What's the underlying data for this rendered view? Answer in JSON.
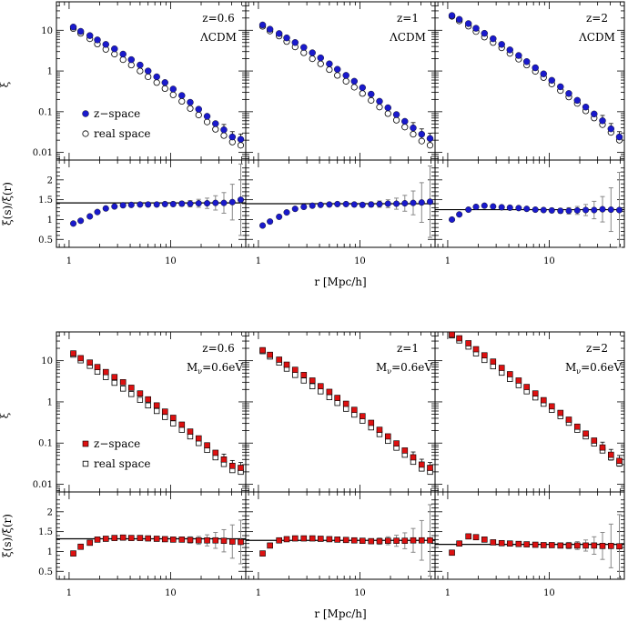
{
  "colors": {
    "lcdm_marker": "#1a1acc",
    "nu_marker": "#dd1111",
    "axis": "#000000",
    "errorbar": "#888888",
    "open_marker": "#000000"
  },
  "chart_data": [
    {
      "type": "scatter",
      "group": "top",
      "model": "LCDM",
      "ylabel_main": "ξ",
      "ylabel_ratio": "ξ(s)/ξ(r)",
      "xlabel": "r [Mpc/h]",
      "xscale": "log",
      "xlim": [
        0.75,
        55
      ],
      "main_yscale": "log",
      "main_ylim": [
        0.0065,
        50
      ],
      "main_yticks": [
        {
          "v": 0.01,
          "label": "0.01"
        },
        {
          "v": 0.1,
          "label": "0.1"
        },
        {
          "v": 1,
          "label": "1"
        },
        {
          "v": 10,
          "label": "10"
        }
      ],
      "ratio_ylim": [
        0.3,
        2.5
      ],
      "ratio_yticks": [
        {
          "v": 0.5,
          "label": "0.5"
        },
        {
          "v": 1,
          "label": "1"
        },
        {
          "v": 1.5,
          "label": "1.5"
        },
        {
          "v": 2,
          "label": "2"
        }
      ],
      "xticks": [
        {
          "v": 1,
          "label": "1"
        },
        {
          "v": 10,
          "label": "10"
        }
      ],
      "legend": [
        "z−space",
        "real space"
      ],
      "panels": [
        {
          "label_line1": "z=0.6",
          "label_line2": "ΛCDM",
          "r": [
            1.1,
            1.3,
            1.6,
            1.9,
            2.3,
            2.8,
            3.4,
            4.1,
            5.0,
            6.0,
            7.3,
            8.8,
            10.6,
            12.9,
            15.6,
            18.9,
            22.9,
            27.7,
            33.5,
            40.6,
            49.1
          ],
          "xi_s": [
            12.0,
            9.4,
            7.4,
            5.8,
            4.5,
            3.5,
            2.6,
            1.9,
            1.4,
            1.0,
            0.72,
            0.52,
            0.36,
            0.25,
            0.17,
            0.115,
            0.077,
            0.051,
            0.036,
            0.024,
            0.021
          ],
          "xi_r": [
            11.0,
            8.4,
            6.2,
            4.6,
            3.4,
            2.6,
            1.9,
            1.4,
            1.0,
            0.72,
            0.52,
            0.37,
            0.26,
            0.18,
            0.12,
            0.083,
            0.056,
            0.037,
            0.026,
            0.018,
            0.015
          ],
          "ratio": [
            0.9,
            0.97,
            1.08,
            1.19,
            1.28,
            1.33,
            1.36,
            1.37,
            1.38,
            1.38,
            1.38,
            1.39,
            1.39,
            1.4,
            1.4,
            1.41,
            1.41,
            1.42,
            1.42,
            1.44,
            1.5
          ],
          "ratio_err": [
            0.02,
            0.02,
            0.02,
            0.02,
            0.02,
            0.02,
            0.02,
            0.02,
            0.02,
            0.03,
            0.03,
            0.04,
            0.05,
            0.06,
            0.08,
            0.1,
            0.13,
            0.18,
            0.26,
            0.45,
            0.9
          ],
          "hline": 1.42
        },
        {
          "label_line1": "z=1",
          "label_line2": "ΛCDM",
          "r": [
            1.1,
            1.3,
            1.6,
            1.9,
            2.3,
            2.8,
            3.4,
            4.1,
            5.0,
            6.0,
            7.3,
            8.8,
            10.6,
            12.9,
            15.6,
            18.9,
            22.9,
            27.7,
            33.5,
            40.6,
            49.1
          ],
          "xi_s": [
            13.5,
            10.6,
            8.3,
            6.5,
            5.0,
            3.8,
            2.8,
            2.1,
            1.5,
            1.1,
            0.78,
            0.56,
            0.39,
            0.27,
            0.18,
            0.125,
            0.085,
            0.058,
            0.04,
            0.028,
            0.022
          ],
          "xi_r": [
            12.5,
            9.6,
            7.2,
            5.3,
            3.9,
            2.8,
            2.0,
            1.5,
            1.08,
            0.78,
            0.56,
            0.4,
            0.28,
            0.19,
            0.13,
            0.09,
            0.062,
            0.042,
            0.028,
            0.019,
            0.015
          ],
          "ratio": [
            0.85,
            0.95,
            1.07,
            1.18,
            1.27,
            1.32,
            1.35,
            1.37,
            1.38,
            1.39,
            1.39,
            1.38,
            1.37,
            1.38,
            1.39,
            1.4,
            1.4,
            1.41,
            1.42,
            1.43,
            1.45
          ],
          "ratio_err": [
            0.02,
            0.02,
            0.02,
            0.02,
            0.02,
            0.02,
            0.02,
            0.02,
            0.02,
            0.03,
            0.03,
            0.04,
            0.05,
            0.06,
            0.08,
            0.1,
            0.14,
            0.2,
            0.3,
            0.5,
            0.9
          ],
          "hline": 1.4
        },
        {
          "label_line1": "z=2",
          "label_line2": "ΛCDM",
          "r": [
            1.1,
            1.3,
            1.6,
            1.9,
            2.3,
            2.8,
            3.4,
            4.1,
            5.0,
            6.0,
            7.3,
            8.8,
            10.6,
            12.9,
            15.6,
            18.9,
            22.9,
            27.7,
            33.5,
            40.6,
            49.1
          ],
          "xi_s": [
            23.0,
            18.5,
            14.6,
            11.2,
            8.4,
            6.2,
            4.5,
            3.3,
            2.4,
            1.7,
            1.2,
            0.85,
            0.59,
            0.41,
            0.28,
            0.19,
            0.13,
            0.088,
            0.06,
            0.038,
            0.024
          ],
          "xi_r": [
            22.0,
            17.0,
            12.6,
            9.3,
            6.8,
            5.0,
            3.7,
            2.7,
            1.95,
            1.4,
            0.98,
            0.69,
            0.48,
            0.33,
            0.23,
            0.16,
            0.105,
            0.07,
            0.048,
            0.031,
            0.02
          ],
          "ratio": [
            1.0,
            1.13,
            1.25,
            1.32,
            1.35,
            1.33,
            1.31,
            1.3,
            1.29,
            1.27,
            1.25,
            1.24,
            1.23,
            1.22,
            1.22,
            1.23,
            1.24,
            1.24,
            1.26,
            1.25,
            1.24
          ],
          "ratio_err": [
            0.02,
            0.02,
            0.02,
            0.02,
            0.02,
            0.02,
            0.02,
            0.02,
            0.02,
            0.03,
            0.03,
            0.04,
            0.05,
            0.06,
            0.08,
            0.1,
            0.14,
            0.22,
            0.32,
            0.55,
            0.95
          ],
          "hline": 1.25
        }
      ]
    },
    {
      "type": "scatter",
      "group": "bottom",
      "model": "Mnu=0.6eV",
      "ylabel_main": "ξ",
      "ylabel_ratio": "ξ(s)/ξ(r)",
      "xlabel": "r [Mpc/h]",
      "xscale": "log",
      "xlim": [
        0.75,
        55
      ],
      "main_yscale": "log",
      "main_ylim": [
        0.0065,
        50
      ],
      "main_yticks": [
        {
          "v": 0.01,
          "label": "0.01"
        },
        {
          "v": 0.1,
          "label": "0.1"
        },
        {
          "v": 1,
          "label": "1"
        },
        {
          "v": 10,
          "label": "10"
        }
      ],
      "ratio_ylim": [
        0.3,
        2.5
      ],
      "ratio_yticks": [
        {
          "v": 0.5,
          "label": "0.5"
        },
        {
          "v": 1,
          "label": "1"
        },
        {
          "v": 1.5,
          "label": "1.5"
        },
        {
          "v": 2,
          "label": "2"
        }
      ],
      "xticks": [
        {
          "v": 1,
          "label": "1"
        },
        {
          "v": 10,
          "label": "10"
        }
      ],
      "legend": [
        "z−space",
        "real space"
      ],
      "panels": [
        {
          "label_line1": "z=0.6",
          "label_line2_main": "M",
          "label_line2_sub": "ν",
          "label_line2_rest": "=0.6eV",
          "r": [
            1.1,
            1.3,
            1.6,
            1.9,
            2.3,
            2.8,
            3.4,
            4.1,
            5.0,
            6.0,
            7.3,
            8.8,
            10.6,
            12.9,
            15.6,
            18.9,
            22.9,
            27.7,
            33.5,
            40.6,
            49.1
          ],
          "xi_s": [
            15.0,
            11.5,
            9.0,
            7.0,
            5.3,
            4.0,
            3.0,
            2.2,
            1.6,
            1.15,
            0.82,
            0.58,
            0.41,
            0.28,
            0.19,
            0.13,
            0.088,
            0.058,
            0.04,
            0.028,
            0.025
          ],
          "xi_r": [
            14.0,
            10.2,
            7.5,
            5.4,
            4.0,
            2.9,
            2.1,
            1.55,
            1.12,
            0.82,
            0.6,
            0.43,
            0.3,
            0.21,
            0.145,
            0.1,
            0.068,
            0.045,
            0.031,
            0.022,
            0.02
          ],
          "ratio": [
            0.95,
            1.12,
            1.22,
            1.3,
            1.32,
            1.34,
            1.35,
            1.34,
            1.34,
            1.33,
            1.32,
            1.31,
            1.3,
            1.3,
            1.29,
            1.28,
            1.28,
            1.28,
            1.27,
            1.25,
            1.24
          ],
          "ratio_err": [
            0.02,
            0.02,
            0.02,
            0.02,
            0.02,
            0.02,
            0.02,
            0.02,
            0.02,
            0.03,
            0.03,
            0.04,
            0.05,
            0.06,
            0.08,
            0.1,
            0.14,
            0.2,
            0.28,
            0.42,
            0.55
          ],
          "hline": 1.32
        },
        {
          "label_line1": "z=1",
          "label_line2_main": "M",
          "label_line2_sub": "ν",
          "label_line2_rest": "=0.6eV",
          "r": [
            1.1,
            1.3,
            1.6,
            1.9,
            2.3,
            2.8,
            3.4,
            4.1,
            5.0,
            6.0,
            7.3,
            8.8,
            10.6,
            12.9,
            15.6,
            18.9,
            22.9,
            27.7,
            33.5,
            40.6,
            49.1
          ],
          "xi_s": [
            18.0,
            13.9,
            10.6,
            8.0,
            6.0,
            4.5,
            3.3,
            2.4,
            1.75,
            1.25,
            0.9,
            0.64,
            0.45,
            0.31,
            0.21,
            0.145,
            0.098,
            0.066,
            0.045,
            0.03,
            0.025
          ],
          "xi_r": [
            17.0,
            12.6,
            9.0,
            6.4,
            4.5,
            3.3,
            2.4,
            1.8,
            1.3,
            0.94,
            0.68,
            0.49,
            0.35,
            0.24,
            0.165,
            0.113,
            0.077,
            0.052,
            0.035,
            0.024,
            0.02
          ],
          "ratio": [
            0.95,
            1.15,
            1.28,
            1.31,
            1.33,
            1.33,
            1.33,
            1.32,
            1.31,
            1.3,
            1.29,
            1.28,
            1.27,
            1.26,
            1.26,
            1.27,
            1.27,
            1.27,
            1.28,
            1.28,
            1.28
          ],
          "ratio_err": [
            0.02,
            0.02,
            0.02,
            0.02,
            0.02,
            0.02,
            0.02,
            0.02,
            0.02,
            0.03,
            0.03,
            0.04,
            0.05,
            0.06,
            0.08,
            0.1,
            0.14,
            0.2,
            0.3,
            0.5,
            0.9
          ],
          "hline": 1.28
        },
        {
          "label_line1": "z=2",
          "label_line2_main": "M",
          "label_line2_sub": "ν",
          "label_line2_rest": "=0.6eV",
          "r": [
            1.1,
            1.3,
            1.6,
            1.9,
            2.3,
            2.8,
            3.4,
            4.1,
            5.0,
            6.0,
            7.3,
            8.8,
            10.6,
            12.9,
            15.6,
            18.9,
            22.9,
            27.7,
            33.5,
            40.6,
            49.1
          ],
          "xi_s": [
            43.0,
            35.0,
            26.5,
            19.0,
            13.5,
            9.5,
            6.7,
            4.7,
            3.3,
            2.3,
            1.6,
            1.1,
            0.78,
            0.54,
            0.37,
            0.25,
            0.17,
            0.115,
            0.078,
            0.052,
            0.037
          ],
          "xi_r": [
            41.0,
            31.0,
            22.0,
            15.0,
            10.4,
            7.3,
            5.1,
            3.6,
            2.55,
            1.8,
            1.28,
            0.9,
            0.64,
            0.45,
            0.31,
            0.21,
            0.145,
            0.098,
            0.066,
            0.045,
            0.032
          ],
          "ratio": [
            0.97,
            1.2,
            1.38,
            1.36,
            1.3,
            1.23,
            1.21,
            1.2,
            1.19,
            1.18,
            1.17,
            1.16,
            1.16,
            1.15,
            1.15,
            1.15,
            1.15,
            1.15,
            1.14,
            1.14,
            1.13
          ],
          "ratio_err": [
            0.02,
            0.02,
            0.03,
            0.03,
            0.03,
            0.02,
            0.02,
            0.02,
            0.02,
            0.03,
            0.03,
            0.04,
            0.05,
            0.06,
            0.08,
            0.1,
            0.14,
            0.22,
            0.34,
            0.55,
            0.8
          ],
          "hline": 1.18
        }
      ]
    }
  ]
}
